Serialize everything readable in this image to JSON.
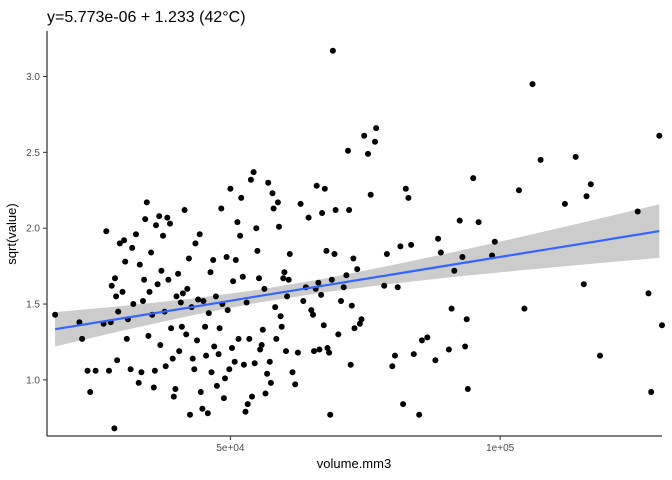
{
  "chart_data": {
    "type": "scatter",
    "title": "y=5.773e-06 + 1.233 (42°C)",
    "xlabel": "volume.mm3",
    "ylabel": "sqrt(value)",
    "xlim": [
      16000,
      130000
    ],
    "ylim": [
      0.63,
      3.3
    ],
    "x_ticks": [
      {
        "value": 50000,
        "label": "5e+04"
      },
      {
        "value": 100000,
        "label": "1e+05"
      }
    ],
    "y_ticks": [
      {
        "value": 1.0,
        "label": "1.0"
      },
      {
        "value": 1.5,
        "label": "1.5"
      },
      {
        "value": 2.0,
        "label": "2.0"
      },
      {
        "value": 2.5,
        "label": "2.5"
      },
      {
        "value": 3.0,
        "label": "3.0"
      }
    ],
    "grid": false,
    "point_color": "#000000",
    "fit_color": "#3366ff",
    "band_color": "#cccccc",
    "fit": {
      "x": [
        17500,
        30000,
        42500,
        55000,
        67500,
        80000,
        92500,
        105000,
        117500,
        129500
      ],
      "y": [
        1.334,
        1.406,
        1.478,
        1.551,
        1.623,
        1.695,
        1.767,
        1.839,
        1.911,
        1.981
      ],
      "lower": [
        1.22,
        1.325,
        1.423,
        1.509,
        1.578,
        1.634,
        1.683,
        1.726,
        1.767,
        1.805
      ],
      "upper": [
        1.447,
        1.487,
        1.534,
        1.593,
        1.668,
        1.757,
        1.851,
        1.952,
        2.056,
        2.157
      ]
    },
    "points": [
      [
        17500,
        1.43
      ],
      [
        22000,
        1.38
      ],
      [
        22500,
        1.27
      ],
      [
        23500,
        1.06
      ],
      [
        24000,
        0.92
      ],
      [
        25000,
        1.06
      ],
      [
        26500,
        1.37
      ],
      [
        27000,
        1.98
      ],
      [
        27500,
        1.06
      ],
      [
        27800,
        1.38
      ],
      [
        28000,
        1.62
      ],
      [
        28500,
        0.68
      ],
      [
        28600,
        1.67
      ],
      [
        28800,
        1.55
      ],
      [
        29000,
        1.13
      ],
      [
        29200,
        1.45
      ],
      [
        29500,
        1.9
      ],
      [
        30000,
        1.58
      ],
      [
        30300,
        1.92
      ],
      [
        30500,
        1.78
      ],
      [
        30800,
        1.27
      ],
      [
        31000,
        1.4
      ],
      [
        31500,
        1.07
      ],
      [
        31800,
        1.87
      ],
      [
        32000,
        1.5
      ],
      [
        32500,
        1.96
      ],
      [
        33000,
        0.98
      ],
      [
        33200,
        1.76
      ],
      [
        33500,
        1.05
      ],
      [
        33800,
        1.52
      ],
      [
        34000,
        1.66
      ],
      [
        34200,
        2.06
      ],
      [
        34500,
        2.17
      ],
      [
        34800,
        1.29
      ],
      [
        35000,
        1.58
      ],
      [
        35300,
        1.84
      ],
      [
        35500,
        1.43
      ],
      [
        35800,
        0.95
      ],
      [
        36000,
        1.06
      ],
      [
        36200,
        2.02
      ],
      [
        36500,
        1.63
      ],
      [
        36800,
        2.08
      ],
      [
        37000,
        1.23
      ],
      [
        37200,
        1.72
      ],
      [
        37500,
        1.95
      ],
      [
        37800,
        1.45
      ],
      [
        38000,
        1.09
      ],
      [
        38300,
        2.07
      ],
      [
        38500,
        1.66
      ],
      [
        38800,
        2.03
      ],
      [
        39000,
        1.34
      ],
      [
        39300,
        1.14
      ],
      [
        39500,
        0.89
      ],
      [
        39800,
        0.94
      ],
      [
        40000,
        1.55
      ],
      [
        40300,
        1.7
      ],
      [
        40500,
        1.19
      ],
      [
        40800,
        1.51
      ],
      [
        41000,
        1.35
      ],
      [
        41200,
        1.57
      ],
      [
        41500,
        2.12
      ],
      [
        41800,
        1.3
      ],
      [
        42000,
        1.6
      ],
      [
        42300,
        1.8
      ],
      [
        42500,
        0.77
      ],
      [
        42800,
        1.48
      ],
      [
        43000,
        1.14
      ],
      [
        43300,
        1.07
      ],
      [
        43500,
        1.9
      ],
      [
        43800,
        1.26
      ],
      [
        44000,
        1.53
      ],
      [
        44300,
        1.96
      ],
      [
        44500,
        0.92
      ],
      [
        44800,
        0.81
      ],
      [
        45000,
        1.52
      ],
      [
        45300,
        1.35
      ],
      [
        45500,
        1.16
      ],
      [
        45800,
        0.78
      ],
      [
        46000,
        1.44
      ],
      [
        46300,
        1.71
      ],
      [
        46500,
        1.05
      ],
      [
        46800,
        1.79
      ],
      [
        47000,
        1.22
      ],
      [
        47300,
        1.55
      ],
      [
        47500,
        0.96
      ],
      [
        47800,
        1.17
      ],
      [
        48000,
        1.34
      ],
      [
        48300,
        2.13
      ],
      [
        48500,
        1.5
      ],
      [
        48800,
        0.88
      ],
      [
        49000,
        1.01
      ],
      [
        49300,
        1.81
      ],
      [
        49500,
        1.46
      ],
      [
        49800,
        1.07
      ],
      [
        50000,
        2.26
      ],
      [
        50300,
        1.21
      ],
      [
        50500,
        1.65
      ],
      [
        50800,
        1.12
      ],
      [
        51000,
        1.79
      ],
      [
        51300,
        2.04
      ],
      [
        51500,
        1.27
      ],
      [
        51800,
        1.95
      ],
      [
        52000,
        2.2
      ],
      [
        52300,
        1.68
      ],
      [
        52500,
        1.1
      ],
      [
        52800,
        0.79
      ],
      [
        53000,
        1.51
      ],
      [
        53200,
        0.84
      ],
      [
        53500,
        1.27
      ],
      [
        53800,
        2.32
      ],
      [
        54000,
        0.89
      ],
      [
        54300,
        2.37
      ],
      [
        54500,
        1.11
      ],
      [
        54800,
        2.0
      ],
      [
        55000,
        1.85
      ],
      [
        55300,
        1.67
      ],
      [
        55500,
        1.2
      ],
      [
        55800,
        1.23
      ],
      [
        56000,
        1.33
      ],
      [
        56300,
        1.6
      ],
      [
        56500,
        0.91
      ],
      [
        56800,
        1.04
      ],
      [
        57000,
        2.3
      ],
      [
        57300,
        1.12
      ],
      [
        57500,
        0.98
      ],
      [
        57800,
        2.23
      ],
      [
        58000,
        2.13
      ],
      [
        58300,
        1.48
      ],
      [
        58500,
        1.27
      ],
      [
        58800,
        2.17
      ],
      [
        59000,
        2.01
      ],
      [
        59300,
        1.42
      ],
      [
        59500,
        1.35
      ],
      [
        59800,
        1.67
      ],
      [
        60000,
        1.71
      ],
      [
        60300,
        1.19
      ],
      [
        60500,
        1.55
      ],
      [
        60800,
        1.66
      ],
      [
        61000,
        1.83
      ],
      [
        61500,
        1.05
      ],
      [
        62000,
        0.97
      ],
      [
        62500,
        1.18
      ],
      [
        63000,
        2.16
      ],
      [
        63500,
        1.52
      ],
      [
        64000,
        1.61
      ],
      [
        64500,
        2.07
      ],
      [
        65000,
        1.46
      ],
      [
        65300,
        1.43
      ],
      [
        65500,
        1.19
      ],
      [
        65800,
        1.6
      ],
      [
        66000,
        2.28
      ],
      [
        66300,
        1.64
      ],
      [
        66500,
        1.2
      ],
      [
        66800,
        1.56
      ],
      [
        67000,
        2.1
      ],
      [
        67300,
        1.36
      ],
      [
        67500,
        2.26
      ],
      [
        67800,
        1.85
      ],
      [
        68000,
        1.21
      ],
      [
        68300,
        1.18
      ],
      [
        68500,
        0.77
      ],
      [
        68800,
        1.66
      ],
      [
        69000,
        3.17
      ],
      [
        69300,
        1.83
      ],
      [
        69500,
        2.12
      ],
      [
        70000,
        1.3
      ],
      [
        70500,
        1.52
      ],
      [
        71000,
        1.61
      ],
      [
        71500,
        1.69
      ],
      [
        71800,
        2.51
      ],
      [
        72000,
        2.12
      ],
      [
        72300,
        1.1
      ],
      [
        72500,
        1.49
      ],
      [
        72800,
        1.8
      ],
      [
        73000,
        1.34
      ],
      [
        73500,
        1.73
      ],
      [
        74000,
        1.37
      ],
      [
        74300,
        1.4
      ],
      [
        74800,
        2.61
      ],
      [
        75500,
        2.49
      ],
      [
        76000,
        2.22
      ],
      [
        76800,
        2.57
      ],
      [
        77000,
        2.66
      ],
      [
        78500,
        1.62
      ],
      [
        79000,
        1.83
      ],
      [
        80000,
        1.09
      ],
      [
        80500,
        1.16
      ],
      [
        81000,
        1.61
      ],
      [
        81500,
        1.88
      ],
      [
        82000,
        0.84
      ],
      [
        82500,
        2.26
      ],
      [
        83000,
        2.2
      ],
      [
        83500,
        1.89
      ],
      [
        84000,
        1.17
      ],
      [
        85000,
        0.77
      ],
      [
        85500,
        1.26
      ],
      [
        86500,
        1.28
      ],
      [
        88000,
        1.13
      ],
      [
        88500,
        1.93
      ],
      [
        89000,
        1.84
      ],
      [
        90500,
        1.2
      ],
      [
        91000,
        1.47
      ],
      [
        91500,
        1.72
      ],
      [
        92500,
        2.05
      ],
      [
        93000,
        1.81
      ],
      [
        93500,
        1.22
      ],
      [
        93800,
        1.4
      ],
      [
        94000,
        0.94
      ],
      [
        95000,
        2.33
      ],
      [
        96000,
        2.04
      ],
      [
        98500,
        1.82
      ],
      [
        99000,
        1.91
      ],
      [
        103500,
        2.25
      ],
      [
        104500,
        1.47
      ],
      [
        106000,
        2.95
      ],
      [
        107500,
        2.45
      ],
      [
        112000,
        2.16
      ],
      [
        114000,
        2.47
      ],
      [
        115500,
        1.63
      ],
      [
        116000,
        2.21
      ],
      [
        116800,
        2.29
      ],
      [
        118500,
        1.16
      ],
      [
        125500,
        2.11
      ],
      [
        127500,
        1.57
      ],
      [
        128000,
        0.92
      ],
      [
        129500,
        2.61
      ],
      [
        130000,
        1.36
      ]
    ]
  }
}
